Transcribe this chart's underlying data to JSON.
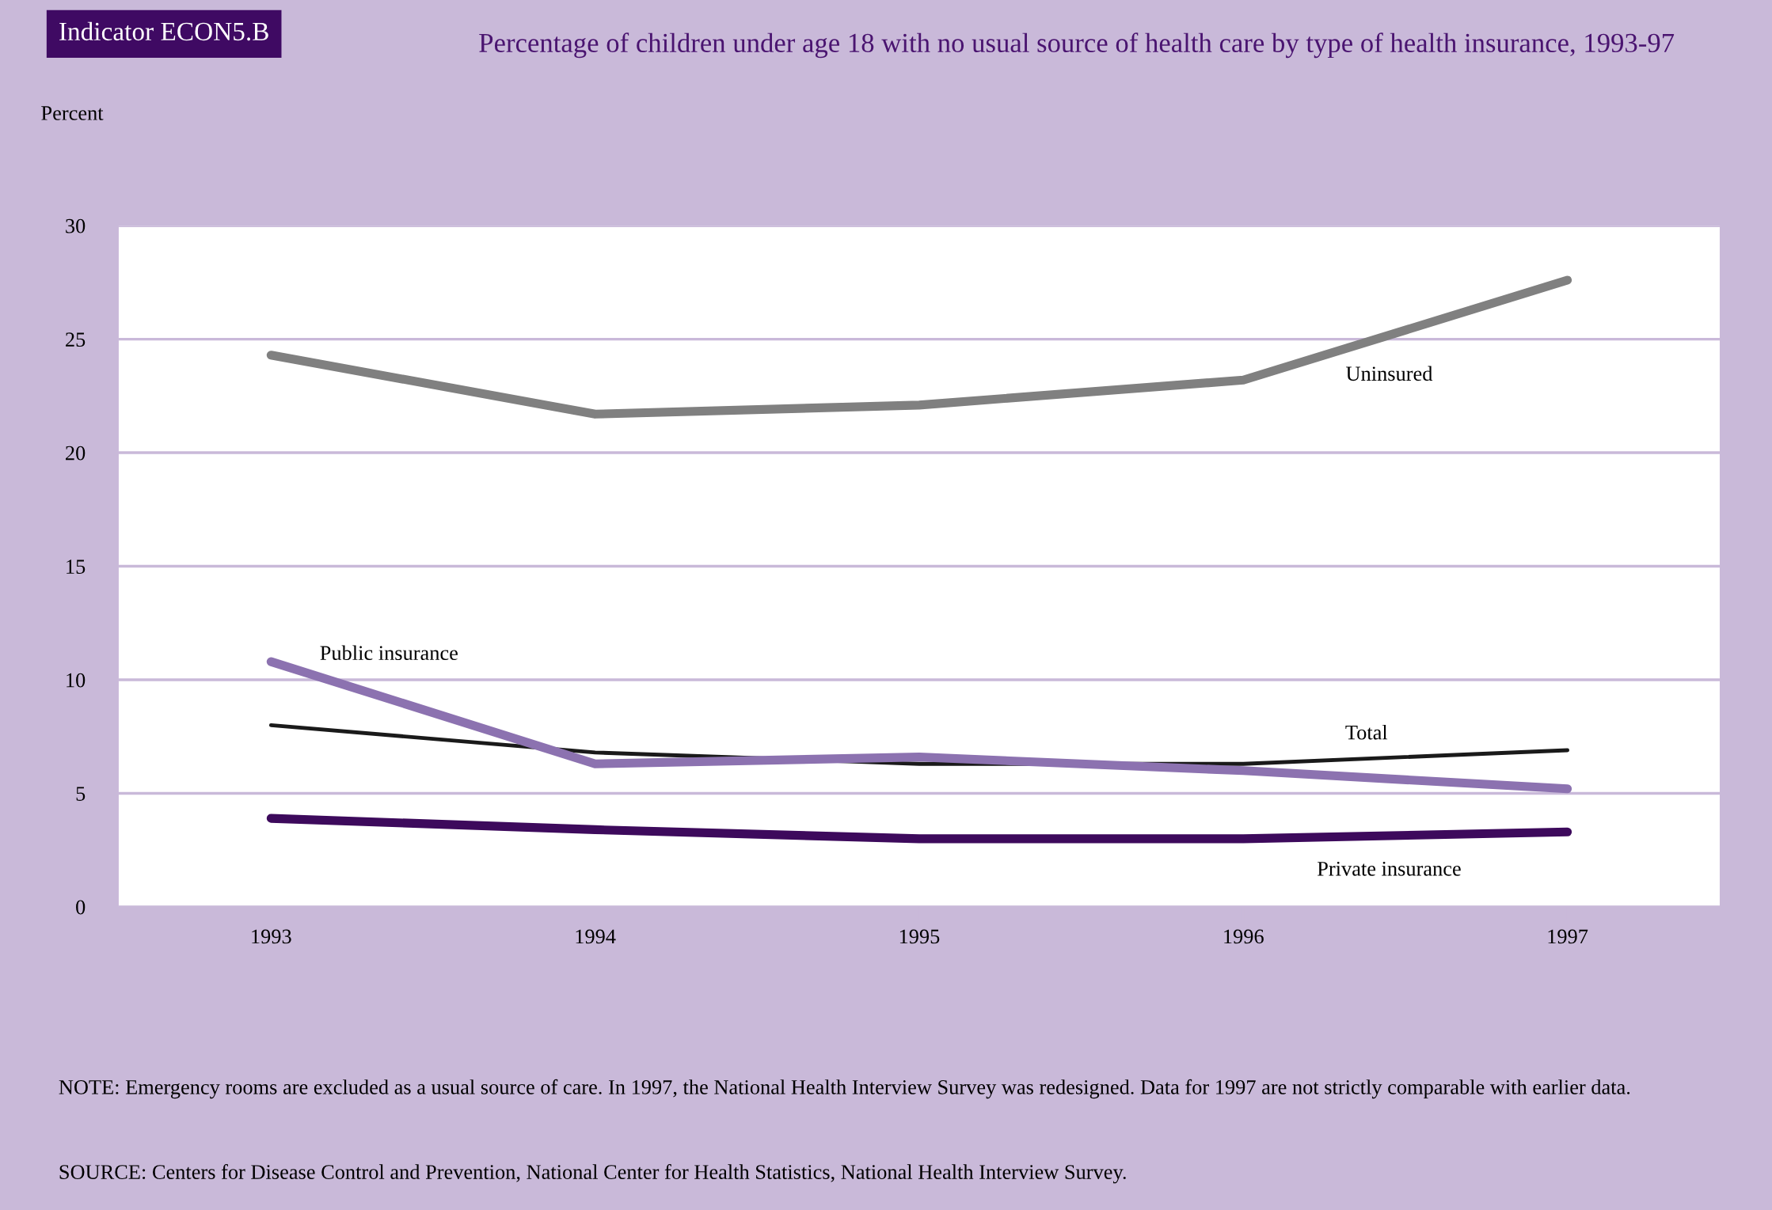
{
  "chart_data": {
    "type": "line",
    "title": "Percentage of children under age 18 with no usual source of health care by type of health insurance, 1993-97",
    "ylabel": "Percent",
    "categories": [
      "1993",
      "1994",
      "1995",
      "1996",
      "1997"
    ],
    "series": [
      {
        "name": "Uninsured",
        "color": "#808080",
        "values": [
          24.3,
          21.7,
          22.1,
          23.2,
          27.6
        ]
      },
      {
        "name": "Public insurance",
        "color": "#8c72b0",
        "values": [
          10.8,
          6.3,
          6.6,
          6.0,
          5.2
        ]
      },
      {
        "name": "Total",
        "color": "#1a1a1a",
        "values": [
          8.0,
          6.8,
          6.3,
          6.3,
          6.9
        ]
      },
      {
        "name": "Private insurance",
        "color": "#3d0a5c",
        "values": [
          3.9,
          3.4,
          3.0,
          3.0,
          3.3
        ]
      }
    ],
    "ylim": [
      0,
      30
    ],
    "yticks": [
      0,
      5,
      10,
      15,
      20,
      25,
      30
    ],
    "grid": "y",
    "legend": false,
    "marker": "none",
    "line_style": "solid",
    "annotations": [
      "Indicator ECON5.B",
      "NOTE: Emergency rooms are excluded as a usual source of care. In 1997, the National Health Interview Survey was redesigned. Data for 1997 are not strictly comparable with earlier data.",
      "SOURCE: Centers for Disease Control and Prevention, National Center for Health Statistics, National Health Interview Survey."
    ]
  }
}
